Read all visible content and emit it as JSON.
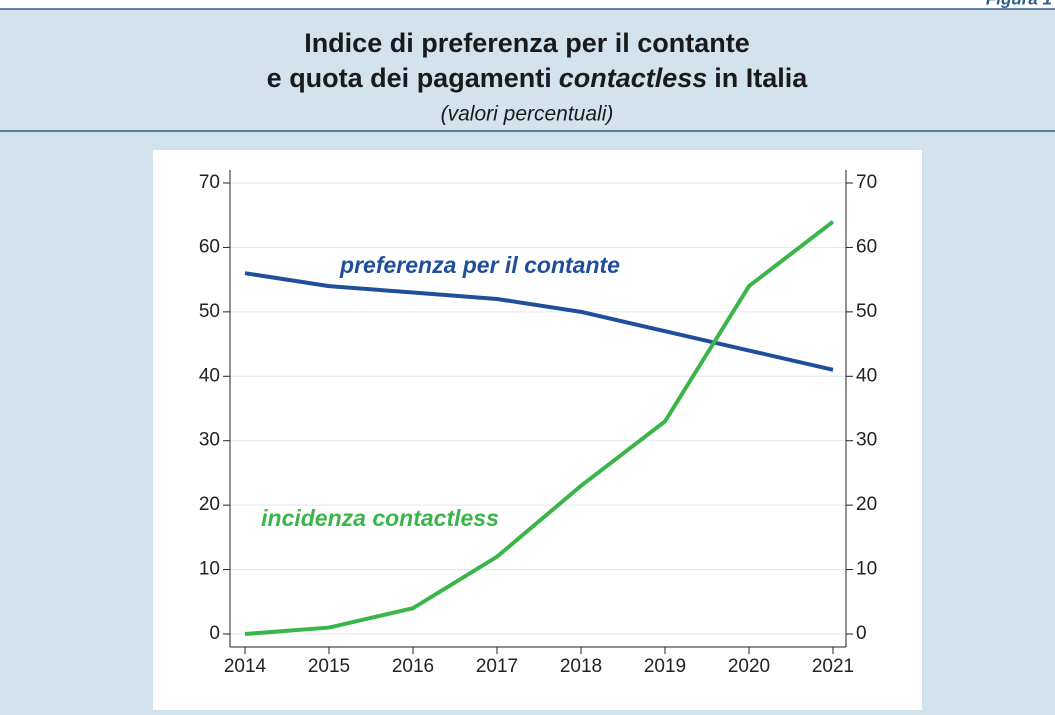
{
  "figure_label": "Figura 1",
  "chart_data": {
    "type": "line",
    "title": {
      "line1": "Indice di preferenza per il contante",
      "line2": [
        "e quota dei pagamenti",
        "contactless",
        "in Italia"
      ]
    },
    "subtitle": "(valori percentuali)",
    "x": [
      2014,
      2015,
      2016,
      2017,
      2018,
      2019,
      2020,
      2021
    ],
    "xlim": [
      2014,
      2021
    ],
    "xticks": [
      2014,
      2015,
      2016,
      2017,
      2018,
      2019,
      2020,
      2021
    ],
    "ylim": [
      0,
      70
    ],
    "yticks": [
      0,
      10,
      20,
      30,
      40,
      50,
      60,
      70
    ],
    "y2lim": [
      0,
      70
    ],
    "y2ticks": [
      0,
      10,
      20,
      30,
      40,
      50,
      60,
      70
    ],
    "grid": true,
    "series": [
      {
        "name": "preferenza per il contante",
        "color": "#1f4e9c",
        "values": [
          56,
          54,
          53,
          52,
          50,
          47,
          44,
          41
        ]
      },
      {
        "name": "incidenza contactless",
        "color": "#3ab54a",
        "axis": "y2",
        "values": [
          0,
          1,
          4,
          12,
          23,
          33,
          54,
          64
        ]
      }
    ]
  }
}
